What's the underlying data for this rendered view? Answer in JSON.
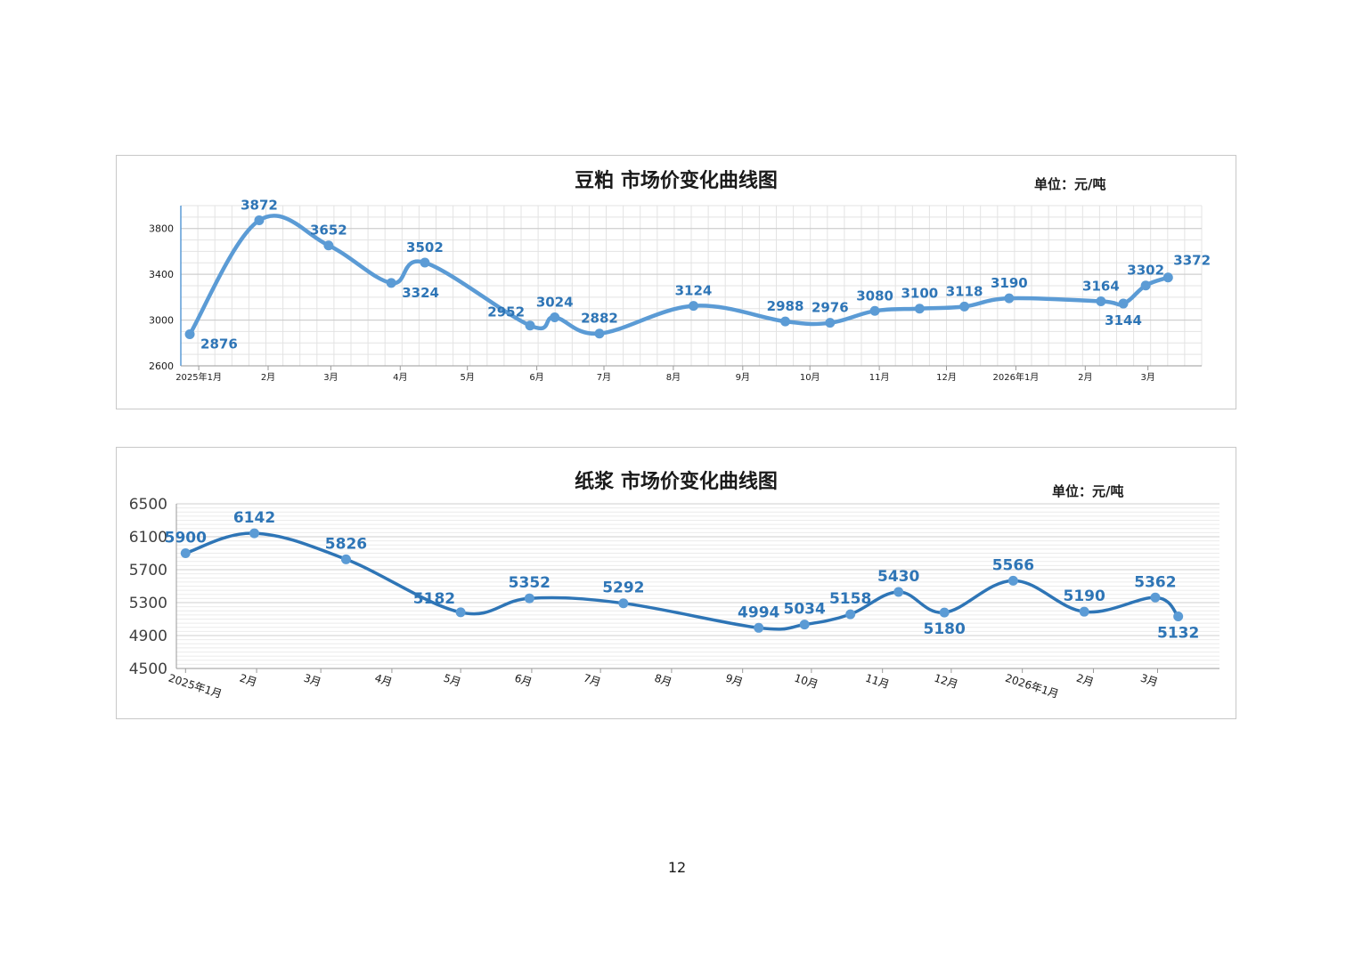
{
  "page": {
    "number": "12"
  },
  "charts": [
    {
      "title": "豆粕 市场价变化曲线图",
      "unit": "单位：元/吨"
    },
    {
      "title": "纸浆 市场价变化曲线图",
      "unit": "单位：元/吨"
    }
  ],
  "chart_data": [
    {
      "type": "line",
      "title": "豆粕 市场价变化曲线图",
      "unit_label": "单位：元/吨",
      "ylim": [
        2600,
        4000
      ],
      "yticks": [
        2600,
        3000,
        3400,
        3800
      ],
      "grid": true,
      "color": "#5b9bd5",
      "xlim": [
        "2024-12-24",
        "2026-03-25"
      ],
      "x_ticks": [
        {
          "date": "2025-01-01",
          "label": "2025年1月"
        },
        {
          "date": "2025-02-01",
          "label": "2月"
        },
        {
          "date": "2025-03-01",
          "label": "3月"
        },
        {
          "date": "2025-04-01",
          "label": "4月"
        },
        {
          "date": "2025-05-01",
          "label": "5月"
        },
        {
          "date": "2025-06-01",
          "label": "6月"
        },
        {
          "date": "2025-07-01",
          "label": "7月"
        },
        {
          "date": "2025-08-01",
          "label": "8月"
        },
        {
          "date": "2025-09-01",
          "label": "9月"
        },
        {
          "date": "2025-10-01",
          "label": "10月"
        },
        {
          "date": "2025-11-01",
          "label": "11月"
        },
        {
          "date": "2025-12-01",
          "label": "12月"
        },
        {
          "date": "2026-01-01",
          "label": "2026年1月"
        },
        {
          "date": "2026-02-01",
          "label": "2月"
        },
        {
          "date": "2026-03-01",
          "label": "3月"
        }
      ],
      "points": [
        {
          "date": "2024-12-28",
          "value": 2876,
          "label_pos": "below-right"
        },
        {
          "date": "2025-01-28",
          "value": 3872,
          "label_pos": "above"
        },
        {
          "date": "2025-02-28",
          "value": 3652,
          "label_pos": "above"
        },
        {
          "date": "2025-03-28",
          "value": 3324,
          "label_pos": "below-right"
        },
        {
          "date": "2025-04-12",
          "value": 3502,
          "label_pos": "above"
        },
        {
          "date": "2025-05-29",
          "value": 2952,
          "label_pos": "above-left"
        },
        {
          "date": "2025-06-09",
          "value": 3024,
          "label_pos": "above"
        },
        {
          "date": "2025-06-29",
          "value": 2882,
          "label_pos": "above"
        },
        {
          "date": "2025-08-10",
          "value": 3124,
          "label_pos": "above"
        },
        {
          "date": "2025-09-20",
          "value": 2988,
          "label_pos": "above"
        },
        {
          "date": "2025-10-10",
          "value": 2976,
          "label_pos": "above"
        },
        {
          "date": "2025-10-30",
          "value": 3080,
          "label_pos": "above"
        },
        {
          "date": "2025-11-19",
          "value": 3100,
          "label_pos": "above"
        },
        {
          "date": "2025-12-09",
          "value": 3118,
          "label_pos": "above"
        },
        {
          "date": "2025-12-29",
          "value": 3190,
          "label_pos": "above"
        },
        {
          "date": "2026-02-08",
          "value": 3164,
          "label_pos": "above"
        },
        {
          "date": "2026-02-18",
          "value": 3144,
          "label_pos": "below"
        },
        {
          "date": "2026-02-28",
          "value": 3302,
          "label_pos": "above"
        },
        {
          "date": "2026-03-10",
          "value": 3372,
          "label_pos": "above-right"
        }
      ]
    },
    {
      "type": "line",
      "title": "纸浆 市场价变化曲线图",
      "unit_label": "单位：元/吨",
      "ylim": [
        4500,
        6500
      ],
      "yticks": [
        4500,
        4900,
        5300,
        5700,
        6100,
        6500
      ],
      "grid": true,
      "color": "#2e75b6",
      "marker_color": "#5b9bd5",
      "xlim": [
        "2024-12-28",
        "2026-03-28"
      ],
      "x_ticks": [
        {
          "date": "2025-01-01",
          "label": "2025年1月"
        },
        {
          "date": "2025-02-01",
          "label": "2月"
        },
        {
          "date": "2025-03-01",
          "label": "3月"
        },
        {
          "date": "2025-04-01",
          "label": "4月"
        },
        {
          "date": "2025-05-01",
          "label": "5月"
        },
        {
          "date": "2025-06-01",
          "label": "6月"
        },
        {
          "date": "2025-07-01",
          "label": "7月"
        },
        {
          "date": "2025-08-01",
          "label": "8月"
        },
        {
          "date": "2025-09-01",
          "label": "9月"
        },
        {
          "date": "2025-10-01",
          "label": "10月"
        },
        {
          "date": "2025-11-01",
          "label": "11月"
        },
        {
          "date": "2025-12-01",
          "label": "12月"
        },
        {
          "date": "2026-01-01",
          "label": "2026年1月"
        },
        {
          "date": "2026-02-01",
          "label": "2月"
        },
        {
          "date": "2026-03-01",
          "label": "3月"
        }
      ],
      "points": [
        {
          "date": "2025-01-01",
          "value": 5900,
          "label_pos": "above"
        },
        {
          "date": "2025-01-31",
          "value": 6142,
          "label_pos": "above"
        },
        {
          "date": "2025-03-12",
          "value": 5826,
          "label_pos": "above"
        },
        {
          "date": "2025-05-01",
          "value": 5182,
          "label_pos": "above-left"
        },
        {
          "date": "2025-05-31",
          "value": 5352,
          "label_pos": "above"
        },
        {
          "date": "2025-07-11",
          "value": 5292,
          "label_pos": "above"
        },
        {
          "date": "2025-09-08",
          "value": 4994,
          "label_pos": "above"
        },
        {
          "date": "2025-09-28",
          "value": 5034,
          "label_pos": "above"
        },
        {
          "date": "2025-10-18",
          "value": 5158,
          "label_pos": "above"
        },
        {
          "date": "2025-11-08",
          "value": 5430,
          "label_pos": "above"
        },
        {
          "date": "2025-11-28",
          "value": 5180,
          "label_pos": "below"
        },
        {
          "date": "2025-12-28",
          "value": 5566,
          "label_pos": "above"
        },
        {
          "date": "2026-01-28",
          "value": 5190,
          "label_pos": "above"
        },
        {
          "date": "2026-02-28",
          "value": 5362,
          "label_pos": "above"
        },
        {
          "date": "2026-03-10",
          "value": 5132,
          "label_pos": "below"
        }
      ]
    }
  ]
}
